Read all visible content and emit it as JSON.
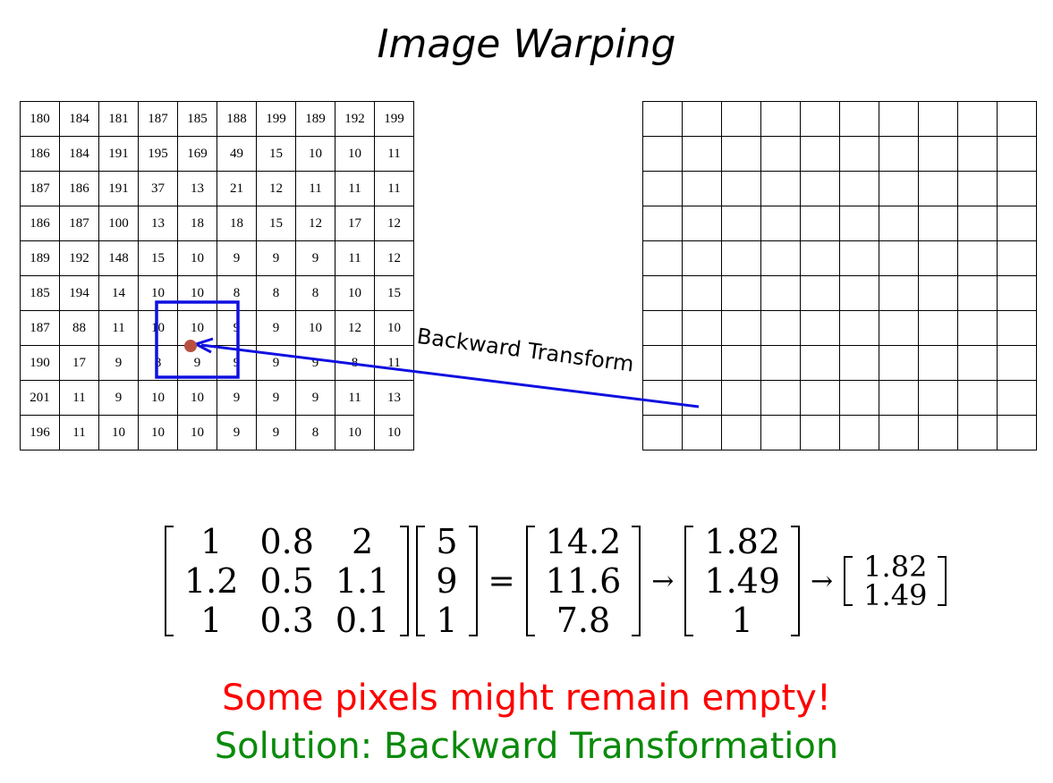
{
  "title": "Image Warping",
  "source_grid": [
    [
      "180",
      "184",
      "181",
      "187",
      "185",
      "188",
      "199",
      "189",
      "192",
      "199"
    ],
    [
      "186",
      "184",
      "191",
      "195",
      "169",
      "49",
      "15",
      "10",
      "10",
      "11"
    ],
    [
      "187",
      "186",
      "191",
      "37",
      "13",
      "21",
      "12",
      "11",
      "11",
      "11"
    ],
    [
      "186",
      "187",
      "100",
      "13",
      "18",
      "18",
      "15",
      "12",
      "17",
      "12"
    ],
    [
      "189",
      "192",
      "148",
      "15",
      "10",
      "9",
      "9",
      "9",
      "11",
      "12"
    ],
    [
      "185",
      "194",
      "14",
      "10",
      "10",
      "8",
      "8",
      "8",
      "10",
      "15"
    ],
    [
      "187",
      "88",
      "11",
      "10",
      "10",
      "9",
      "9",
      "10",
      "12",
      "10"
    ],
    [
      "190",
      "17",
      "9",
      "8",
      "9",
      "9",
      "9",
      "9",
      "8",
      "11"
    ],
    [
      "201",
      "11",
      "9",
      "10",
      "10",
      "9",
      "9",
      "9",
      "11",
      "13"
    ],
    [
      "196",
      "11",
      "10",
      "10",
      "10",
      "9",
      "9",
      "8",
      "10",
      "10"
    ]
  ],
  "destination_grid": {
    "rows": 10,
    "cols": 10
  },
  "arrow_label": "Backward Transform",
  "equation": {
    "matrix": [
      [
        "1",
        "0.8",
        "2"
      ],
      [
        "1.2",
        "0.5",
        "1.1"
      ],
      [
        "1",
        "0.3",
        "0.1"
      ]
    ],
    "vector": [
      "5",
      "9",
      "1"
    ],
    "equals": "=",
    "result": [
      "14.2",
      "11.6",
      "7.8"
    ],
    "arrow": "→",
    "normalized": [
      "1.82",
      "1.49",
      "1"
    ],
    "final": [
      "1.82",
      "1.49"
    ]
  },
  "note_warning": "Some pixels might remain empty!",
  "note_solution": "Solution: Backward Transformation",
  "colors": {
    "arrow": "#1010e0",
    "point": "#b85040",
    "warning": "#ff0000",
    "solution": "#0a8a0a"
  }
}
